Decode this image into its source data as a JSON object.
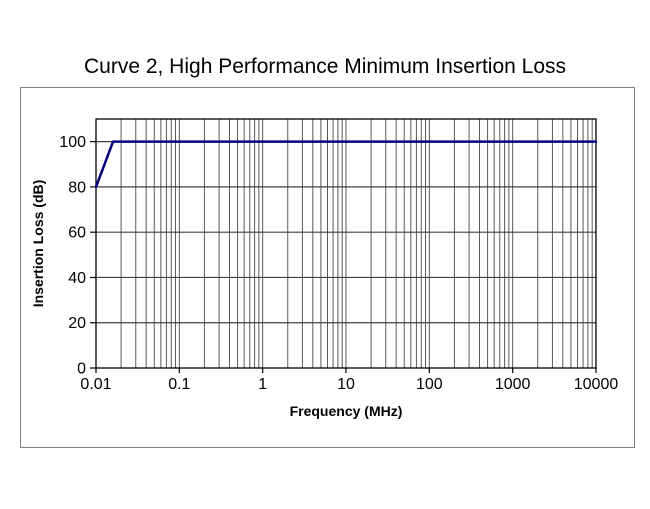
{
  "title": "Curve 2, High Performance Minimum Insertion Loss",
  "chart_data": {
    "type": "line",
    "title": "Curve 2, High Performance Minimum Insertion Loss",
    "xlabel": "Frequency (MHz)",
    "ylabel": "Insertion Loss (dB)",
    "x_scale": "log",
    "xlim": [
      0.01,
      10000
    ],
    "ylim": [
      0,
      110
    ],
    "x_ticks": [
      0.01,
      0.1,
      1,
      10,
      100,
      1000,
      10000
    ],
    "x_tick_labels": [
      "0.01",
      "0.1",
      "1",
      "10",
      "100",
      "1000",
      "10000"
    ],
    "y_ticks": [
      0,
      20,
      40,
      60,
      80,
      100
    ],
    "y_tick_labels": [
      "0",
      "20",
      "40",
      "60",
      "80",
      "100"
    ],
    "grid": "major-y, major-x, minor-x (log 2-9 per decade)",
    "legend": "none",
    "series": [
      {
        "name": "Curve 2 minimum insertion loss",
        "color": "#000080",
        "points": [
          [
            0.01,
            80
          ],
          [
            0.016,
            100
          ],
          [
            10000,
            100
          ]
        ]
      }
    ]
  },
  "colors": {
    "curve": "#000080",
    "major_grid": "#404040",
    "minor_grid": "#595959",
    "axis": "#000000",
    "frame_border": "#7f7f7f",
    "background": "#ffffff"
  }
}
